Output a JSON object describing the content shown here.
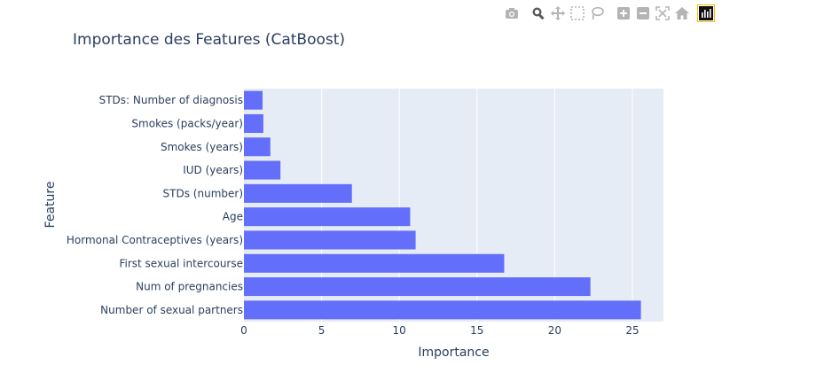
{
  "modebar": {
    "icons": [
      "camera-icon",
      "zoom-icon",
      "pan-icon",
      "box-select-icon",
      "lasso-icon",
      "zoom-in-icon",
      "zoom-out-icon",
      "autoscale-icon",
      "reset-axes-icon",
      "plotly-logo-icon"
    ]
  },
  "colors": {
    "bar": "#636efa",
    "plot_bg": "#e5ecf6",
    "grid": "#ffffff",
    "text": "#2a3f5f",
    "icon": "#a9a9a9"
  },
  "chart_data": {
    "type": "bar",
    "orientation": "horizontal",
    "title": "Importance des Features (CatBoost)",
    "xlabel": "Importance",
    "ylabel": "Feature",
    "xlim": [
      0,
      27
    ],
    "xticks": [
      0,
      5,
      10,
      15,
      20,
      25
    ],
    "grid": true,
    "categories": [
      "STDs: Number of diagnosis",
      "Smokes (packs/year)",
      "Smokes (years)",
      "IUD (years)",
      "STDs (number)",
      "Age",
      "Hormonal Contraceptives (years)",
      "First sexual intercourse",
      "Num of pregnancies",
      "Number of sexual partners"
    ],
    "values": [
      1.2,
      1.25,
      1.7,
      2.35,
      6.95,
      10.7,
      11.05,
      16.75,
      22.3,
      25.55
    ]
  }
}
